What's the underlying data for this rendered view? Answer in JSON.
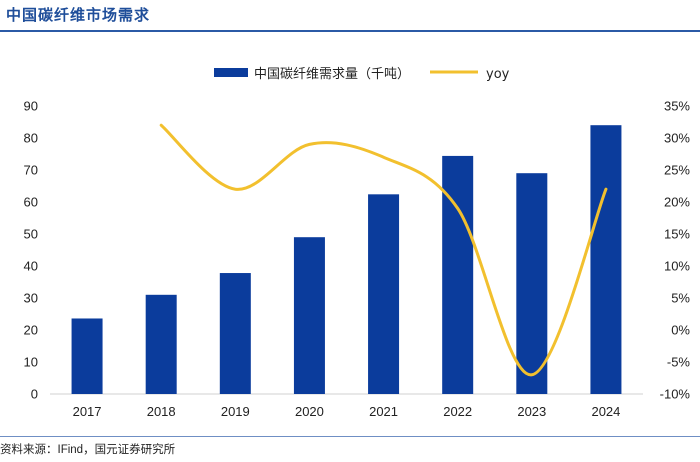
{
  "header": {
    "title": "中国碳纤维市场需求"
  },
  "footer": {
    "source": "资料来源：IFind，国元证券研究所"
  },
  "chart_data": {
    "type": "bar",
    "categories": [
      "2017",
      "2018",
      "2019",
      "2020",
      "2021",
      "2022",
      "2023",
      "2024"
    ],
    "series": [
      {
        "name": "中国碳纤维需求量（千吨）",
        "type": "bar",
        "axis": "left",
        "color": "#0b3c9c",
        "values": [
          23.6,
          31.0,
          37.8,
          49.0,
          62.4,
          74.4,
          69.0,
          84.0
        ]
      },
      {
        "name": "yoy",
        "type": "line",
        "axis": "right",
        "color": "#f2c02e",
        "values": [
          null,
          0.32,
          0.22,
          0.29,
          0.27,
          0.19,
          -0.07,
          0.22
        ]
      }
    ],
    "y_left": {
      "lim": [
        0,
        90
      ],
      "ticks": [
        0,
        10,
        20,
        30,
        40,
        50,
        60,
        70,
        80,
        90
      ]
    },
    "y_right": {
      "lim": [
        -0.1,
        0.35
      ],
      "ticks": [
        -0.1,
        -0.05,
        0.0,
        0.05,
        0.1,
        0.15,
        0.2,
        0.25,
        0.3,
        0.35
      ],
      "tick_labels": [
        "-10%",
        "-5%",
        "0%",
        "5%",
        "10%",
        "15%",
        "20%",
        "25%",
        "30%",
        "35%"
      ]
    },
    "legend": "top-center",
    "grid": false
  }
}
